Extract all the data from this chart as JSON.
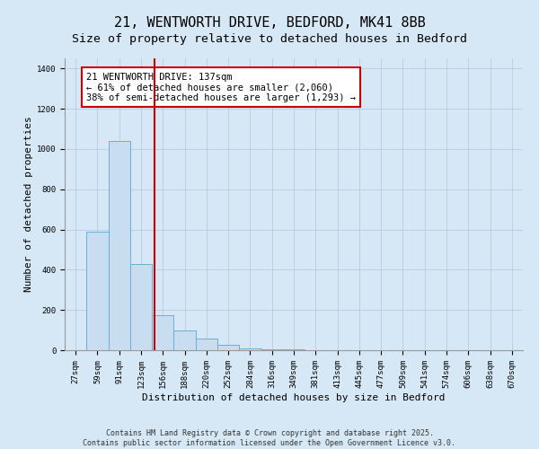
{
  "title": "21, WENTWORTH DRIVE, BEDFORD, MK41 8BB",
  "subtitle": "Size of property relative to detached houses in Bedford",
  "xlabel": "Distribution of detached houses by size in Bedford",
  "ylabel": "Number of detached properties",
  "bar_color": "#c8ddf0",
  "bar_edgecolor": "#6aaed6",
  "vline_color": "#cc0000",
  "annotation_text": "21 WENTWORTH DRIVE: 137sqm\n← 61% of detached houses are smaller (2,060)\n38% of semi-detached houses are larger (1,293) →",
  "annotation_boxcolor": "white",
  "annotation_edgecolor": "#cc0000",
  "background_color": "#d6e8f5",
  "plot_bg_color": "#d6e8f5",
  "categories": [
    "27sqm",
    "59sqm",
    "91sqm",
    "123sqm",
    "156sqm",
    "188sqm",
    "220sqm",
    "252sqm",
    "284sqm",
    "316sqm",
    "349sqm",
    "381sqm",
    "413sqm",
    "445sqm",
    "477sqm",
    "509sqm",
    "541sqm",
    "574sqm",
    "606sqm",
    "638sqm",
    "670sqm"
  ],
  "values": [
    0,
    590,
    1040,
    430,
    175,
    100,
    60,
    25,
    10,
    5,
    3,
    2,
    1,
    1,
    0,
    0,
    0,
    0,
    0,
    0,
    0
  ],
  "vline_x": 3.62,
  "ylim": [
    0,
    1450
  ],
  "yticks": [
    0,
    200,
    400,
    600,
    800,
    1000,
    1200,
    1400
  ],
  "footer_text": "Contains HM Land Registry data © Crown copyright and database right 2025.\nContains public sector information licensed under the Open Government Licence v3.0.",
  "title_fontsize": 11,
  "subtitle_fontsize": 9.5,
  "axis_label_fontsize": 8,
  "tick_fontsize": 6.5,
  "annotation_fontsize": 7.5
}
